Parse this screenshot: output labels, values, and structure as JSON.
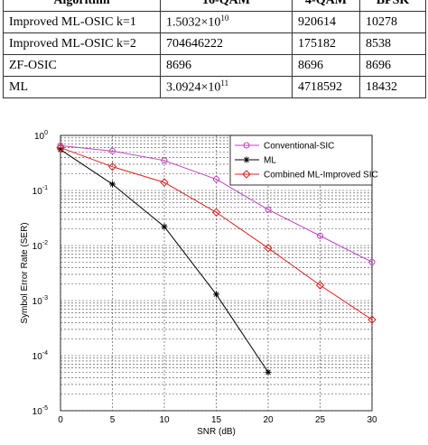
{
  "table": {
    "header": [
      "Algorithm",
      "16-QAM",
      "4-QAM",
      "BPSK"
    ],
    "rows": [
      [
        {
          "text": "Improved  ML-OSIC k=1"
        },
        {
          "text": "1.5032×10",
          "sup": "10"
        },
        {
          "text": "920614"
        },
        {
          "text": "10278"
        }
      ],
      [
        {
          "text": "Improved  ML-OSIC k=2"
        },
        {
          "text": "704646222"
        },
        {
          "text": "175182"
        },
        {
          "text": "8538"
        }
      ],
      [
        {
          "text": "ZF-OSIC"
        },
        {
          "text": "8696"
        },
        {
          "text": "8696"
        },
        {
          "text": "8696"
        }
      ],
      [
        {
          "text": "ML"
        },
        {
          "text": "3.0924×10",
          "sup": "11"
        },
        {
          "text": "4718592"
        },
        {
          "text": "18432"
        }
      ]
    ]
  },
  "chart_data": {
    "type": "line",
    "xlabel": "SNR (dB)",
    "ylabel": "Symbol Error Rate (SER)",
    "x": [
      0,
      5,
      10,
      15,
      20,
      25,
      30
    ],
    "xlim": [
      0,
      30
    ],
    "xticks": [
      0,
      5,
      10,
      15,
      20,
      25,
      30
    ],
    "ylim": [
      1e-05,
      1
    ],
    "log_y": true,
    "grid": true,
    "legend": "upper right",
    "yticks": [
      {
        "value": 1e-05,
        "label": "10",
        "exp": "-5"
      },
      {
        "value": 0.0001,
        "label": "10",
        "exp": "-4"
      },
      {
        "value": 0.001,
        "label": "10",
        "exp": "-3"
      },
      {
        "value": 0.01,
        "label": "10",
        "exp": "-2"
      },
      {
        "value": 0.1,
        "label": "10",
        "exp": "-1"
      },
      {
        "value": 1,
        "label": "10",
        "exp": "0"
      }
    ],
    "series": [
      {
        "name": "Conventional-SIC",
        "color": "#c040c0",
        "marker": "circle",
        "values": [
          0.65,
          0.52,
          0.35,
          0.16,
          0.045,
          0.015,
          0.005
        ]
      },
      {
        "name": "ML",
        "color": "#000000",
        "marker": "star",
        "values": [
          0.55,
          0.13,
          0.022,
          0.0013,
          5e-05,
          null,
          null
        ]
      },
      {
        "name": "Combined ML-Improved SIC",
        "color": "#e02020",
        "marker": "diamond",
        "values": [
          0.6,
          0.27,
          0.14,
          0.04,
          0.009,
          0.0019,
          0.00045
        ]
      }
    ]
  }
}
